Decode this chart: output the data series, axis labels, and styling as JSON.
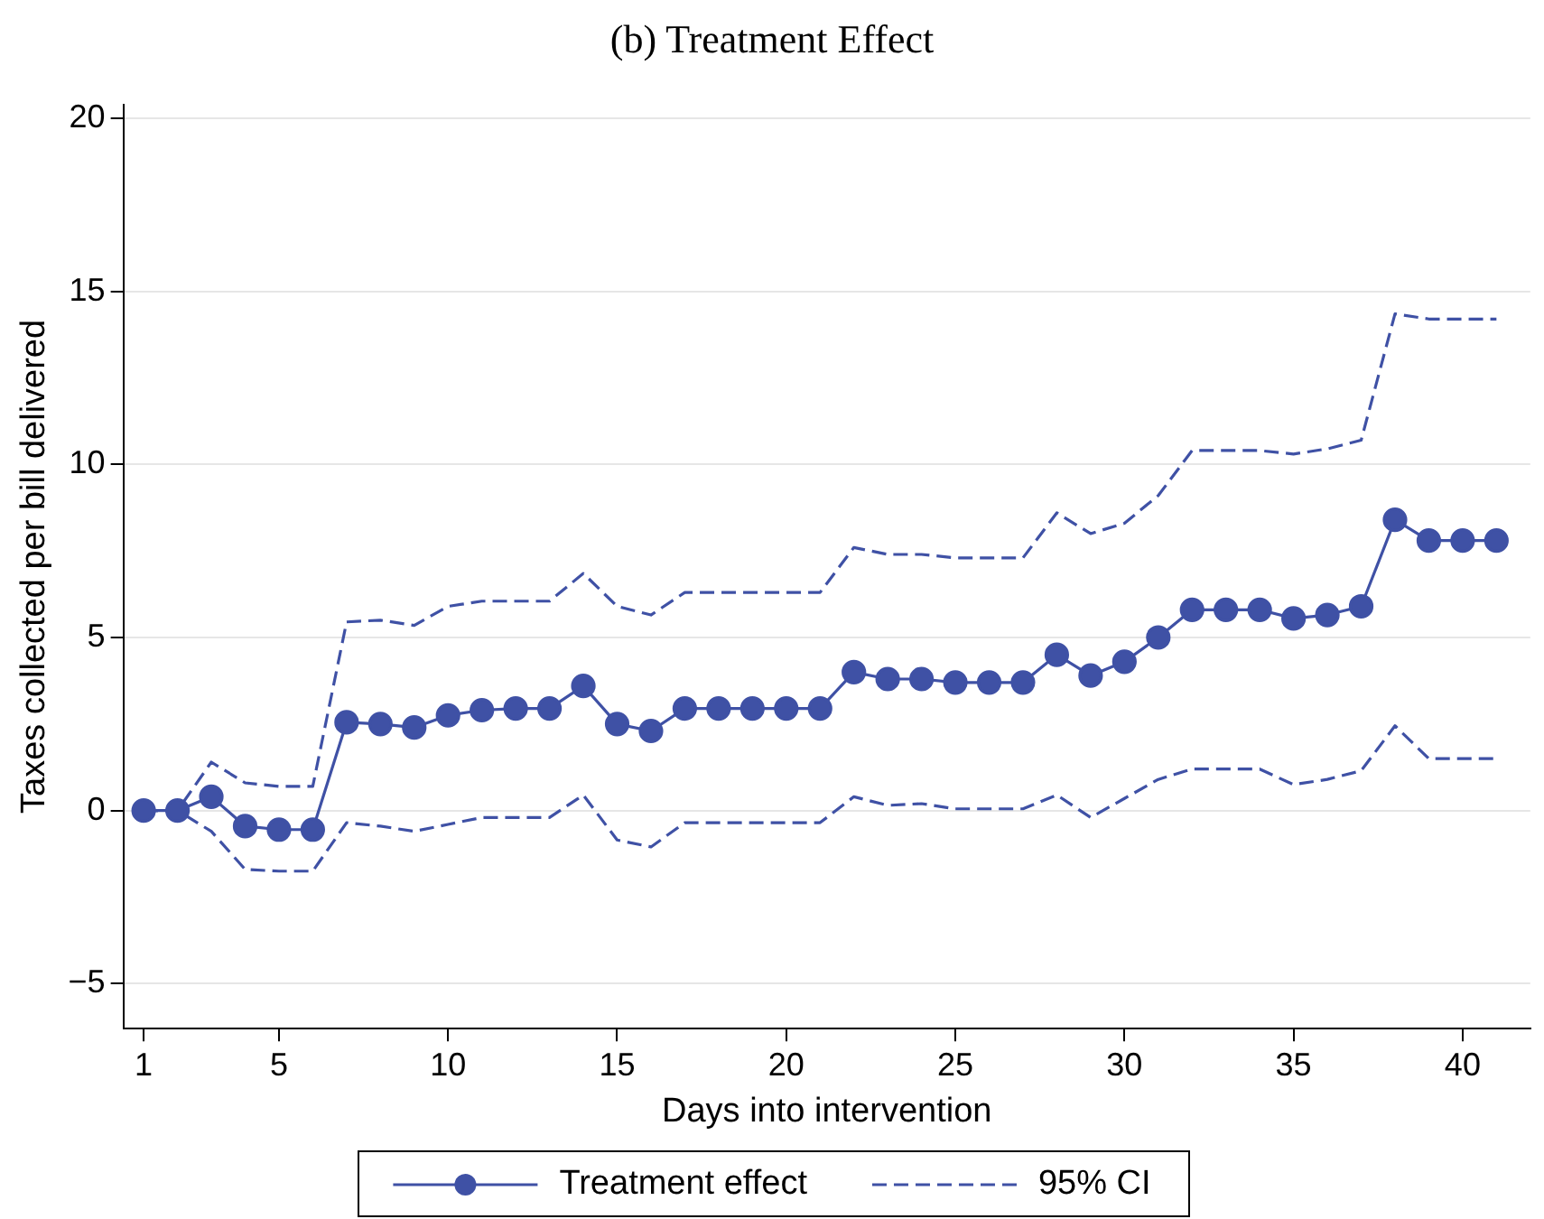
{
  "chart_data": {
    "type": "line",
    "title": "(b) Treatment Effect",
    "xlabel": "Days into intervention",
    "ylabel": "Taxes collected per bill delivered",
    "x": [
      1,
      2,
      3,
      4,
      5,
      6,
      7,
      8,
      9,
      10,
      11,
      12,
      13,
      14,
      15,
      16,
      17,
      18,
      19,
      20,
      21,
      22,
      23,
      24,
      25,
      26,
      27,
      28,
      29,
      30,
      31,
      32,
      33,
      34,
      35,
      36,
      37,
      38,
      39,
      40,
      41
    ],
    "series": [
      {
        "name": "Treatment effect",
        "color": "#3f51a5",
        "marker": "circle",
        "line_style": "solid",
        "values": [
          0,
          0,
          0.4,
          -0.45,
          -0.55,
          -0.55,
          2.55,
          2.5,
          2.4,
          2.75,
          2.9,
          2.95,
          2.95,
          3.6,
          2.5,
          2.3,
          2.95,
          2.95,
          2.95,
          2.95,
          2.95,
          4.0,
          3.8,
          3.8,
          3.7,
          3.7,
          3.7,
          4.5,
          3.9,
          4.3,
          5.0,
          5.8,
          5.8,
          5.8,
          5.55,
          5.65,
          5.9,
          8.4,
          7.8,
          7.8,
          7.8
        ]
      },
      {
        "name": "95% CI",
        "color": "#3f51a5",
        "marker": "none",
        "line_style": "dashed",
        "values": [
          0,
          0,
          1.4,
          0.8,
          0.7,
          0.7,
          5.45,
          5.5,
          5.35,
          5.9,
          6.05,
          6.05,
          6.05,
          6.85,
          5.9,
          5.65,
          6.3,
          6.3,
          6.3,
          6.3,
          6.3,
          7.6,
          7.4,
          7.4,
          7.3,
          7.3,
          7.3,
          8.6,
          8.0,
          8.3,
          9.1,
          10.4,
          10.4,
          10.4,
          10.3,
          10.45,
          10.7,
          14.35,
          14.2,
          14.2,
          14.2
        ]
      },
      {
        "color": "#3f51a5",
        "marker": "none",
        "line_style": "dashed",
        "values": [
          0,
          0,
          -0.6,
          -1.7,
          -1.75,
          -1.75,
          -0.35,
          -0.45,
          -0.6,
          -0.4,
          -0.2,
          -0.2,
          -0.2,
          0.45,
          -0.85,
          -1.05,
          -0.35,
          -0.35,
          -0.35,
          -0.35,
          -0.35,
          0.4,
          0.15,
          0.2,
          0.05,
          0.05,
          0.05,
          0.45,
          -0.2,
          0.35,
          0.9,
          1.2,
          1.2,
          1.2,
          0.75,
          0.9,
          1.15,
          2.45,
          1.5,
          1.5,
          1.5
        ]
      }
    ],
    "xlim": [
      0.4,
      42
    ],
    "xticks": [
      1,
      5,
      10,
      15,
      20,
      25,
      30,
      35,
      40
    ],
    "ylim": [
      -6.3,
      20.4
    ],
    "yticks": [
      {
        "value": -5,
        "label": "−5"
      },
      0,
      5,
      10,
      15,
      20
    ],
    "grid": "y",
    "legend": "bottom"
  }
}
